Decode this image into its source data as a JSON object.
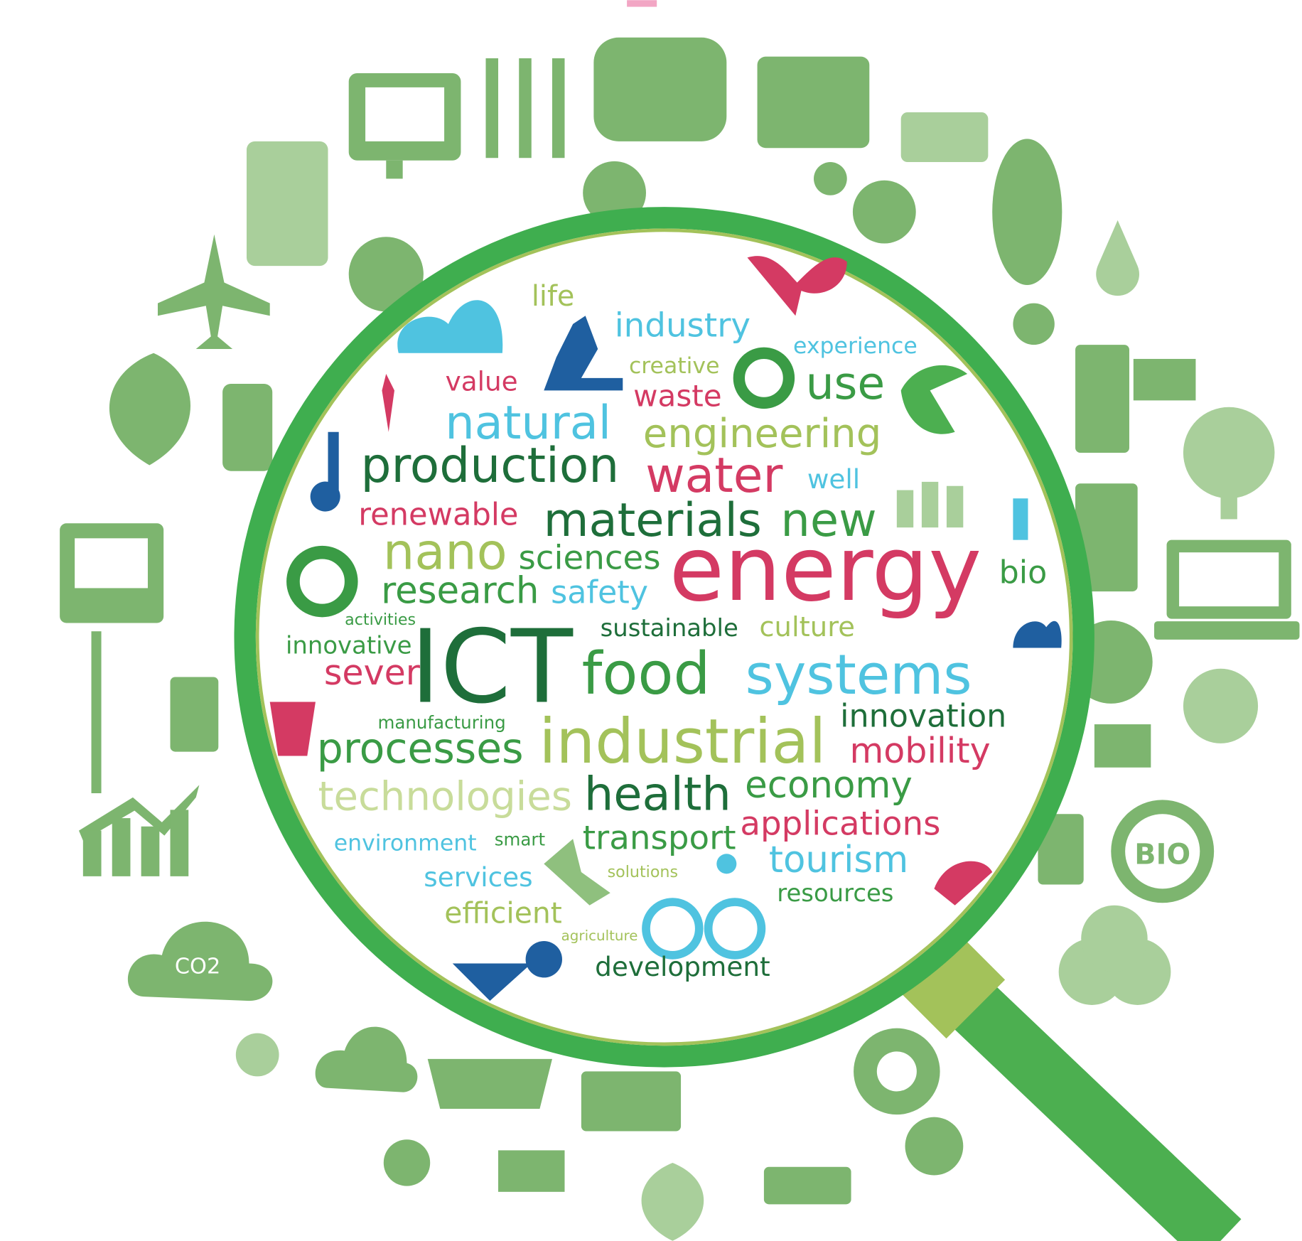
{
  "words": [
    "life",
    "industry",
    "experience",
    "creative",
    "value",
    "waste",
    "use",
    "natural",
    "engineering",
    "production",
    "water",
    "well",
    "renewable",
    "materials",
    "new",
    "nano",
    "sciences",
    "energy",
    "bio",
    "research",
    "safety",
    "activities",
    "sustainable",
    "culture",
    "innovative",
    "ICT",
    "food",
    "systems",
    "sever",
    "manufacturing",
    "innovation",
    "processes",
    "industrial",
    "mobility",
    "technologies",
    "health",
    "economy",
    "applications",
    "environment",
    "smart",
    "transport",
    "tourism",
    "services",
    "solutions",
    "resources",
    "efficient",
    "agriculture",
    "development"
  ],
  "icon_labels": [
    "CO2",
    "BIO"
  ]
}
